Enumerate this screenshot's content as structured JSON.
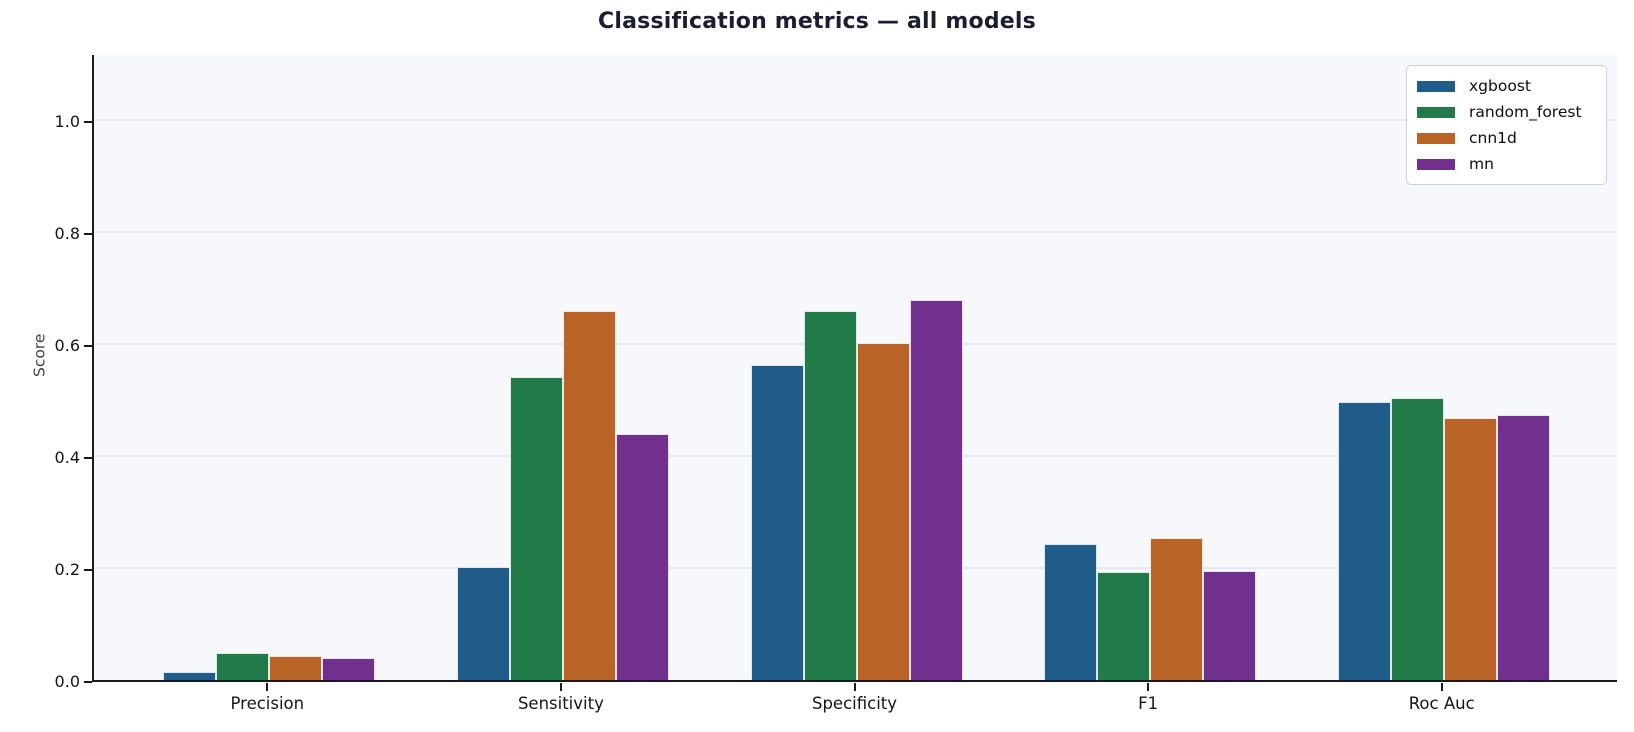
{
  "page": {
    "title": "Classification metrics — all models"
  },
  "chart_data": {
    "type": "bar",
    "title": "Classification metrics — all models",
    "xlabel": "",
    "ylabel": "Score",
    "categories": [
      "Precision",
      "Sensitivity",
      "Specificity",
      "F1",
      "Roc Auc"
    ],
    "series": [
      {
        "name": "xgboost",
        "color": "#1f5c8a",
        "values": [
          0.015,
          0.201,
          0.563,
          0.243,
          0.496
        ]
      },
      {
        "name": "random_forest",
        "color": "#217b48",
        "values": [
          0.049,
          0.541,
          0.66,
          0.193,
          0.503
        ]
      },
      {
        "name": "cnn1d",
        "color": "#ba6326",
        "values": [
          0.043,
          0.66,
          0.602,
          0.253,
          0.468
        ]
      },
      {
        "name": "mn",
        "color": "#712f8e",
        "values": [
          0.039,
          0.439,
          0.678,
          0.194,
          0.474
        ]
      }
    ],
    "ylim": [
      0,
      1.12
    ],
    "yticks": [
      0.0,
      0.2,
      0.4,
      0.6,
      0.8,
      1.0
    ],
    "ytick_labels": [
      "0.0",
      "0.2",
      "0.4",
      "0.6",
      "0.8",
      "1.0"
    ],
    "grid": true,
    "plot_bg_color": "#f7f8fc",
    "gridline_color": "#e4e8f2",
    "spine_color": "#1a1a22",
    "legend_position": "upper right"
  }
}
